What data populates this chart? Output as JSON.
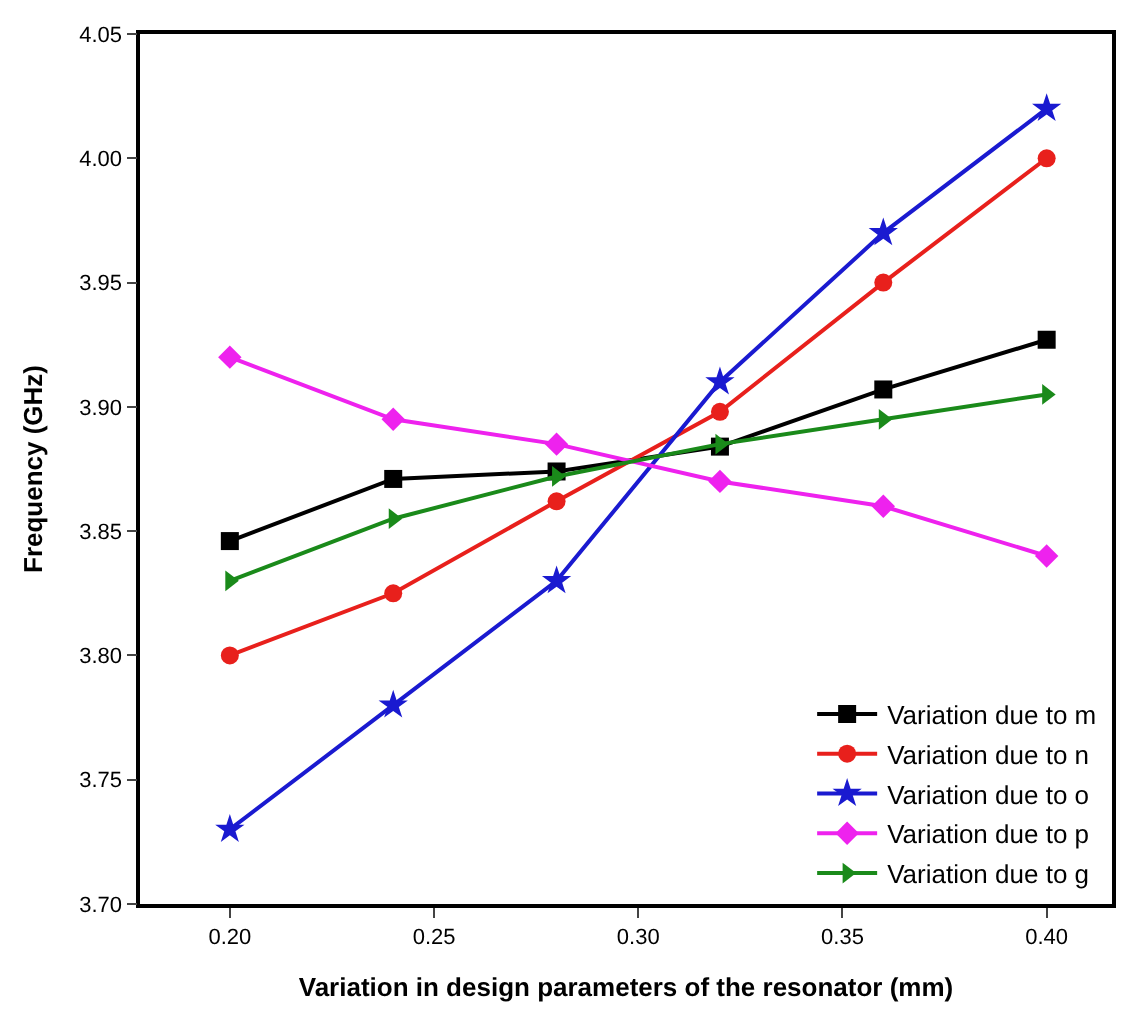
{
  "chart_data": {
    "type": "line",
    "xlabel": "Variation in design parameters of the resonator (mm)",
    "ylabel": "Frequency (GHz)",
    "x": [
      0.2,
      0.24,
      0.28,
      0.32,
      0.36,
      0.4
    ],
    "series": [
      {
        "name": "Variation due to m",
        "color": "#000000",
        "marker": "square",
        "values": [
          3.846,
          3.871,
          3.874,
          3.884,
          3.907,
          3.927
        ]
      },
      {
        "name": "Variation due to n",
        "color": "#e8201c",
        "marker": "circle",
        "values": [
          3.8,
          3.825,
          3.862,
          3.898,
          3.95,
          4.0
        ]
      },
      {
        "name": "Variation due to o",
        "color": "#1a1ad0",
        "marker": "star",
        "values": [
          3.73,
          3.78,
          3.83,
          3.91,
          3.97,
          4.02
        ]
      },
      {
        "name": "Variation due to p",
        "color": "#ee22ee",
        "marker": "diamond",
        "values": [
          3.92,
          3.895,
          3.885,
          3.87,
          3.86,
          3.84
        ]
      },
      {
        "name": "Variation due to g",
        "color": "#1a8a1a",
        "marker": "triangle",
        "values": [
          3.83,
          3.855,
          3.872,
          3.885,
          3.895,
          3.905
        ]
      }
    ],
    "xlim": [
      0.178,
      0.416
    ],
    "xticks": [
      {
        "value": 0.2,
        "label": "0.20"
      },
      {
        "value": 0.25,
        "label": "0.25"
      },
      {
        "value": 0.3,
        "label": "0.30"
      },
      {
        "value": 0.35,
        "label": "0.35"
      },
      {
        "value": 0.4,
        "label": "0.40"
      }
    ],
    "ylim": [
      3.7,
      4.05
    ],
    "yticks": [
      {
        "value": 3.7,
        "label": "3.70"
      },
      {
        "value": 3.75,
        "label": "3.75"
      },
      {
        "value": 3.8,
        "label": "3.80"
      },
      {
        "value": 3.85,
        "label": "3.85"
      },
      {
        "value": 3.9,
        "label": "3.90"
      },
      {
        "value": 3.95,
        "label": "3.95"
      },
      {
        "value": 4.0,
        "label": "4.00"
      },
      {
        "value": 4.05,
        "label": "4.05"
      }
    ],
    "legend": "bottom right",
    "line_style": "solid"
  }
}
